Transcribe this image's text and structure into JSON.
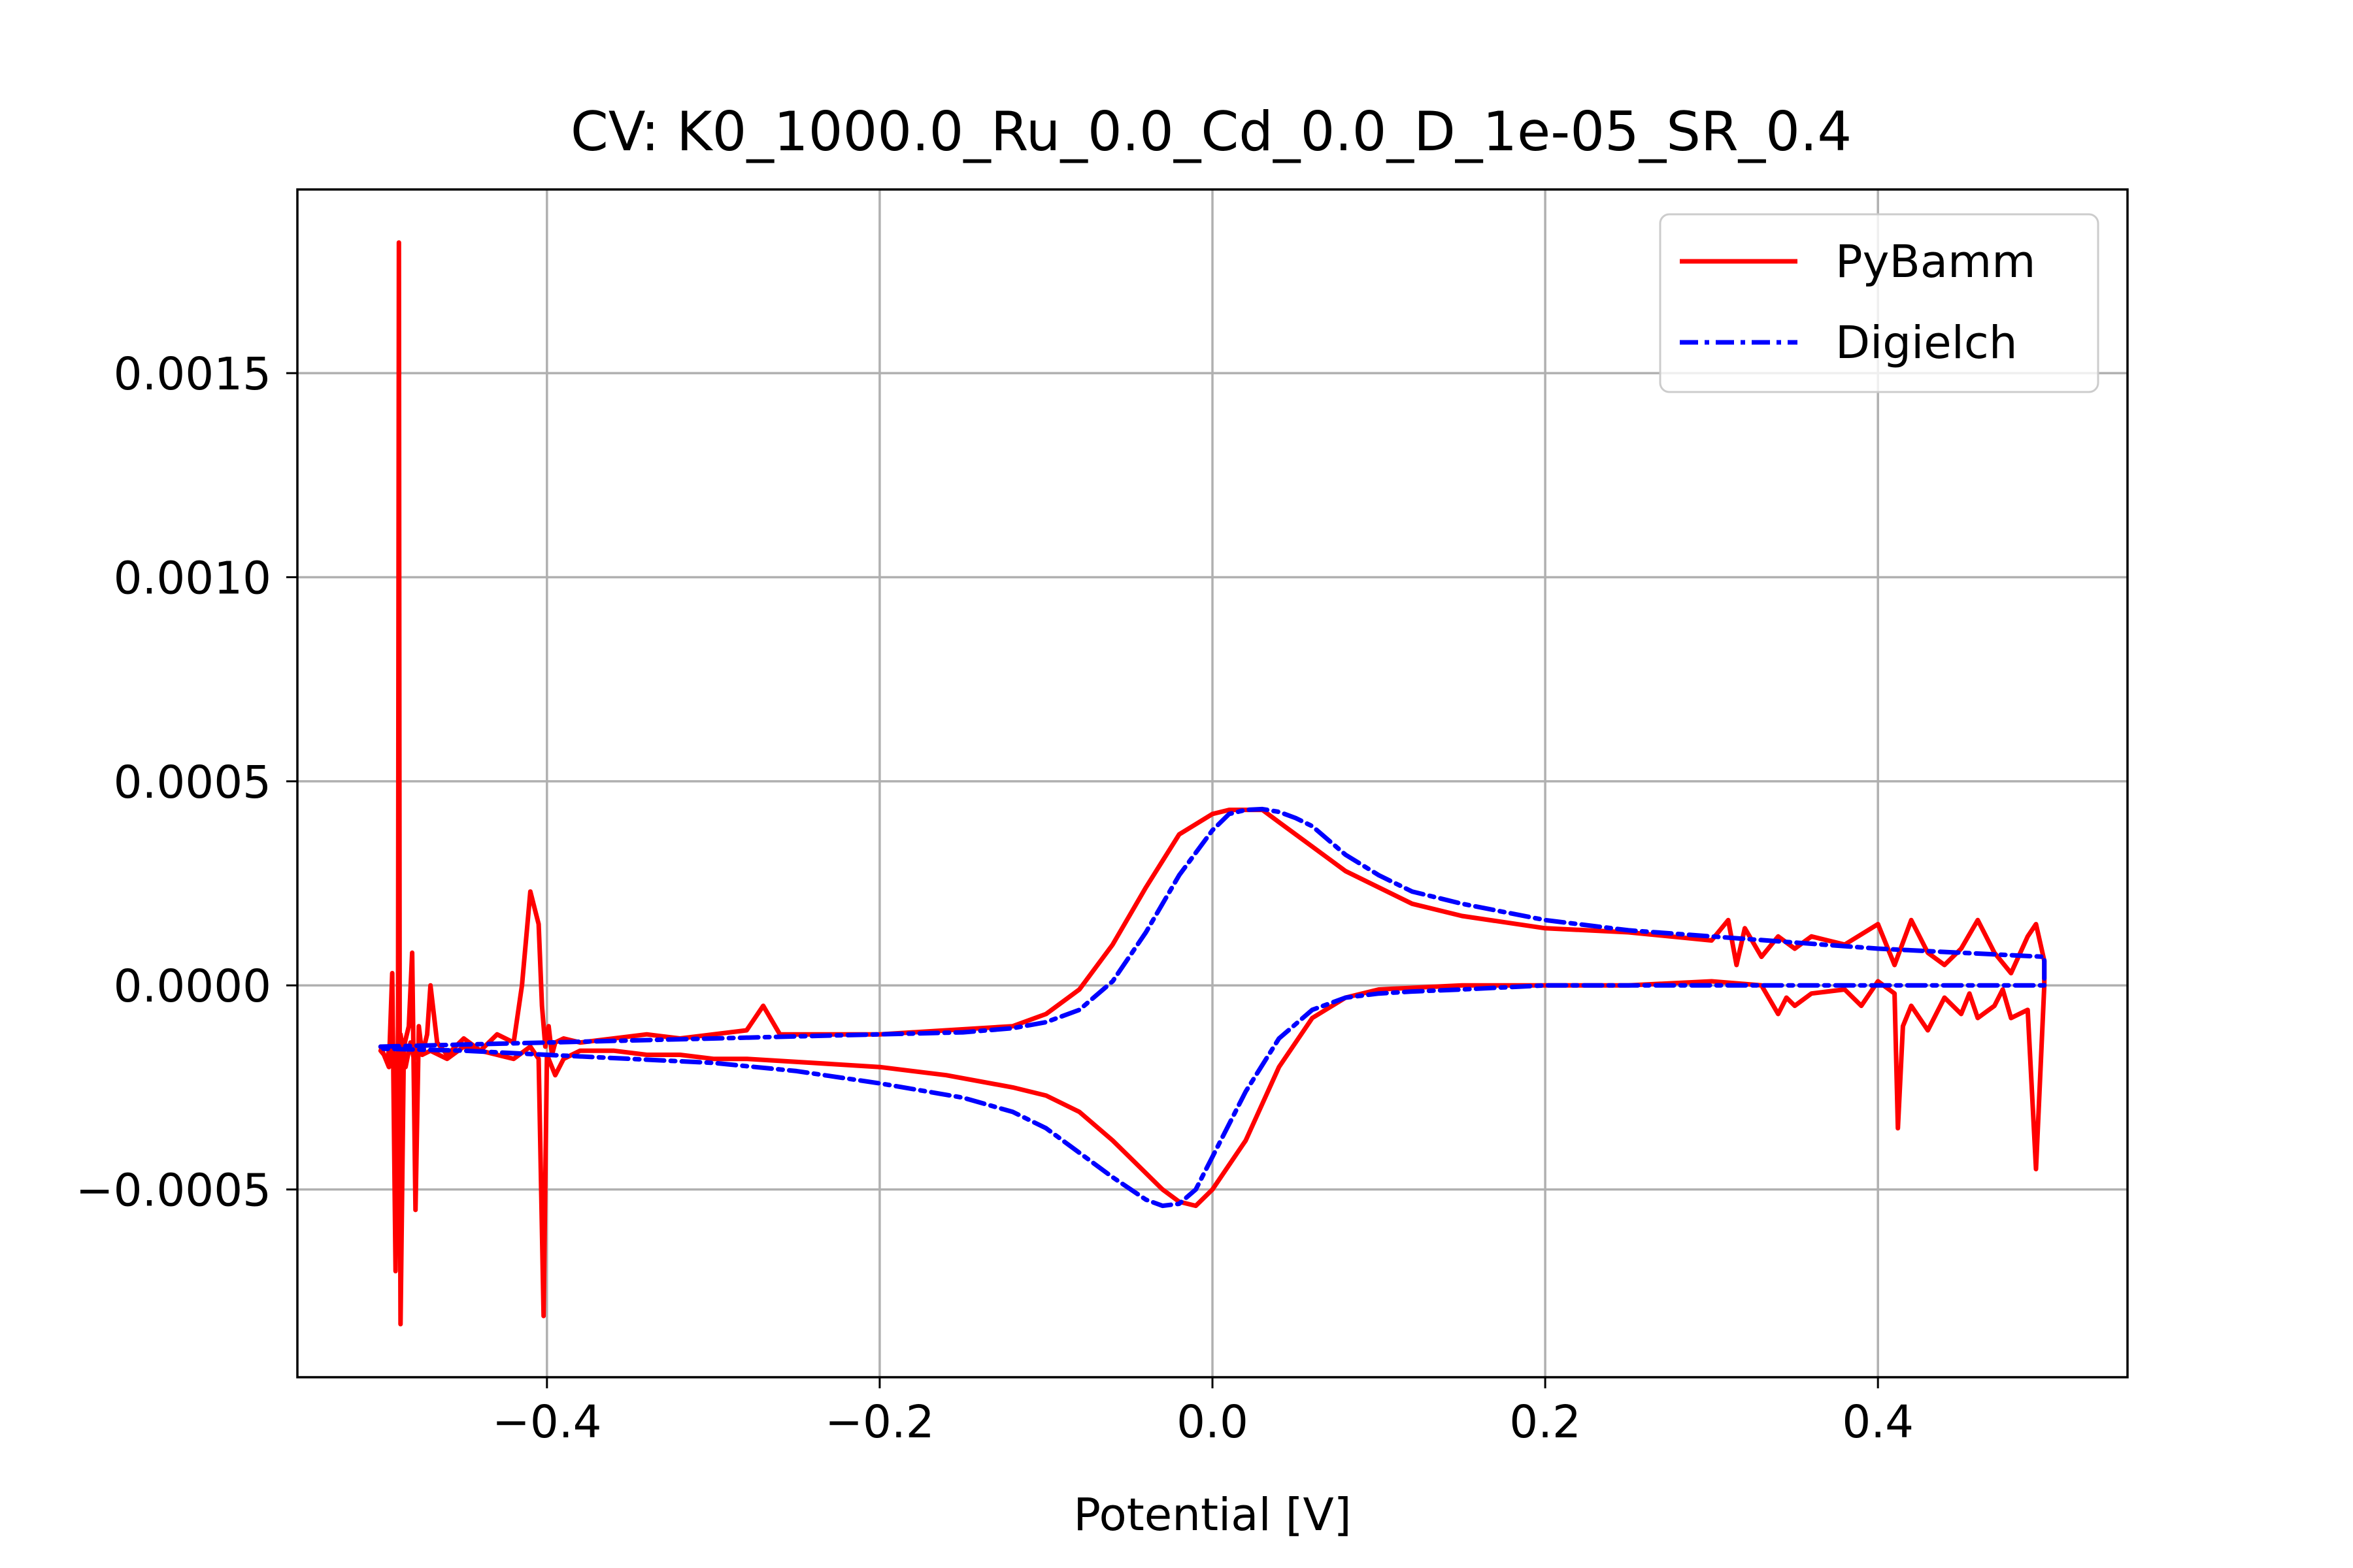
{
  "chart_data": {
    "type": "line",
    "title": "CV: K0_1000.0_Ru_0.0_Cd_0.0_D_1e-05_SR_0.4",
    "xlabel": "Potential [V]",
    "ylabel": "",
    "xlim": [
      -0.55,
      0.55
    ],
    "ylim": [
      -0.00096,
      0.00195
    ],
    "grid": true,
    "legend_position": "upper-right",
    "x_ticks": [
      -0.4,
      -0.2,
      0.0,
      0.2,
      0.4
    ],
    "x_tick_labels": [
      "−0.4",
      "−0.2",
      "0.0",
      "0.2",
      "0.4"
    ],
    "y_ticks": [
      -0.0005,
      0.0,
      0.0005,
      0.001,
      0.0015
    ],
    "y_tick_labels": [
      "−0.0005",
      "0.0000",
      "0.0005",
      "0.0010",
      "0.0015"
    ],
    "series": [
      {
        "name": "PyBamm",
        "color": "#ff0000",
        "style": "solid",
        "x": [
          -0.5,
          -0.495,
          -0.493,
          -0.491,
          -0.4895,
          -0.489,
          -0.4885,
          -0.488,
          -0.486,
          -0.483,
          -0.481,
          -0.479,
          -0.477,
          -0.475,
          -0.472,
          -0.47,
          -0.466,
          -0.46,
          -0.45,
          -0.44,
          -0.43,
          -0.42,
          -0.415,
          -0.41,
          -0.405,
          -0.403,
          -0.401,
          -0.399,
          -0.397,
          -0.395,
          -0.39,
          -0.38,
          -0.36,
          -0.34,
          -0.32,
          -0.3,
          -0.28,
          -0.27,
          -0.26,
          -0.24,
          -0.2,
          -0.16,
          -0.12,
          -0.1,
          -0.08,
          -0.06,
          -0.04,
          -0.02,
          0.0,
          0.01,
          0.02,
          0.03,
          0.04,
          0.06,
          0.08,
          0.1,
          0.12,
          0.15,
          0.2,
          0.25,
          0.3,
          0.31,
          0.315,
          0.32,
          0.33,
          0.34,
          0.35,
          0.36,
          0.38,
          0.4,
          0.41,
          0.42,
          0.43,
          0.44,
          0.45,
          0.46,
          0.47,
          0.48,
          0.49,
          0.495,
          0.5,
          0.5,
          0.495,
          0.49,
          0.48,
          0.475,
          0.47,
          0.46,
          0.455,
          0.45,
          0.44,
          0.43,
          0.42,
          0.415,
          0.412,
          0.41,
          0.4,
          0.39,
          0.38,
          0.36,
          0.35,
          0.345,
          0.34,
          0.33,
          0.3,
          0.25,
          0.2,
          0.15,
          0.1,
          0.08,
          0.06,
          0.04,
          0.02,
          0.0,
          -0.01,
          -0.02,
          -0.03,
          -0.04,
          -0.06,
          -0.08,
          -0.1,
          -0.12,
          -0.16,
          -0.2,
          -0.24,
          -0.28,
          -0.3,
          -0.32,
          -0.34,
          -0.36,
          -0.38,
          -0.39,
          -0.395,
          -0.4,
          -0.402,
          -0.405,
          -0.41,
          -0.42,
          -0.43,
          -0.44,
          -0.45,
          -0.46,
          -0.47,
          -0.475,
          -0.478,
          -0.48,
          -0.482,
          -0.485,
          -0.488,
          -0.49,
          -0.492,
          -0.494,
          -0.496,
          -0.5
        ],
        "y": [
          -0.00015,
          -0.0002,
          3e-05,
          -0.0007,
          -0.0001,
          0.00182,
          -0.0002,
          -0.00083,
          -0.00015,
          -0.0001,
          8e-05,
          -0.00055,
          -0.0001,
          -0.00017,
          -0.00012,
          0.0,
          -0.00014,
          -0.00017,
          -0.00013,
          -0.00016,
          -0.00012,
          -0.00014,
          0.0,
          0.00023,
          0.00015,
          -5e-05,
          -0.00015,
          -0.0001,
          -0.00017,
          -0.00014,
          -0.00013,
          -0.00014,
          -0.00013,
          -0.00012,
          -0.00013,
          -0.00012,
          -0.00011,
          -5e-05,
          -0.00012,
          -0.00012,
          -0.00012,
          -0.00011,
          -0.0001,
          -7e-05,
          -1e-05,
          0.0001,
          0.00024,
          0.00037,
          0.00042,
          0.00043,
          0.00043,
          0.00043,
          0.0004,
          0.00034,
          0.00028,
          0.00024,
          0.0002,
          0.00017,
          0.00014,
          0.00013,
          0.00011,
          0.00016,
          5e-05,
          0.00014,
          7e-05,
          0.00012,
          9e-05,
          0.00012,
          0.0001,
          0.00015,
          5e-05,
          0.00016,
          8e-05,
          5e-05,
          9e-05,
          0.00016,
          8e-05,
          3e-05,
          0.00012,
          0.00015,
          6e-05,
          0.0,
          -0.00045,
          -6e-05,
          -8e-05,
          -1e-05,
          -5e-05,
          -8e-05,
          -2e-05,
          -7e-05,
          -3e-05,
          -0.00011,
          -5e-05,
          -0.0001,
          -0.00035,
          -2e-05,
          1e-05,
          -5e-05,
          -1e-05,
          -2e-05,
          -5e-05,
          -3e-05,
          -7e-05,
          0.0,
          1e-05,
          0.0,
          0.0,
          0.0,
          -1e-05,
          -3e-05,
          -8e-05,
          -0.0002,
          -0.00038,
          -0.0005,
          -0.00054,
          -0.00053,
          -0.0005,
          -0.00046,
          -0.00038,
          -0.00031,
          -0.00027,
          -0.00025,
          -0.00022,
          -0.0002,
          -0.00019,
          -0.00018,
          -0.00018,
          -0.00017,
          -0.00017,
          -0.00016,
          -0.00016,
          -0.00018,
          -0.00022,
          -0.00017,
          -0.00081,
          -0.00018,
          -0.00015,
          -0.00018,
          -0.00017,
          -0.00016,
          -0.00015,
          -0.00018,
          -0.00016,
          -0.00017,
          -0.00015,
          -0.00018,
          -0.00014,
          -0.0002,
          -0.00012,
          -0.00022,
          -0.00017,
          -0.00014,
          -0.00018,
          -0.00016
        ]
      },
      {
        "name": "Digielch",
        "color": "#0000ff",
        "style": "dashdot",
        "x": [
          -0.5,
          -0.45,
          -0.4,
          -0.35,
          -0.3,
          -0.25,
          -0.2,
          -0.15,
          -0.12,
          -0.1,
          -0.08,
          -0.06,
          -0.04,
          -0.02,
          0.0,
          0.01,
          0.02,
          0.03,
          0.04,
          0.05,
          0.06,
          0.08,
          0.1,
          0.12,
          0.15,
          0.2,
          0.25,
          0.3,
          0.35,
          0.4,
          0.45,
          0.5,
          0.5,
          0.45,
          0.4,
          0.35,
          0.3,
          0.25,
          0.2,
          0.15,
          0.12,
          0.1,
          0.08,
          0.06,
          0.04,
          0.02,
          0.0,
          -0.01,
          -0.02,
          -0.03,
          -0.04,
          -0.06,
          -0.08,
          -0.1,
          -0.12,
          -0.15,
          -0.2,
          -0.25,
          -0.3,
          -0.35,
          -0.4,
          -0.45,
          -0.5
        ],
        "y": [
          -0.00015,
          -0.000145,
          -0.00014,
          -0.000135,
          -0.00013,
          -0.000125,
          -0.00012,
          -0.000115,
          -0.000105,
          -9e-05,
          -6e-05,
          1e-05,
          0.00013,
          0.00027,
          0.00038,
          0.00042,
          0.00043,
          0.000432,
          0.000425,
          0.00041,
          0.00039,
          0.00032,
          0.00027,
          0.00023,
          0.0002,
          0.00016,
          0.000135,
          0.00012,
          0.000105,
          9e-05,
          8e-05,
          7e-05,
          0.0,
          0.0,
          0.0,
          0.0,
          0.0,
          0.0,
          0.0,
          -1e-05,
          -1.5e-05,
          -2e-05,
          -3e-05,
          -6e-05,
          -0.00013,
          -0.00026,
          -0.00042,
          -0.0005,
          -0.000535,
          -0.00054,
          -0.000525,
          -0.00047,
          -0.00041,
          -0.00035,
          -0.00031,
          -0.000275,
          -0.00024,
          -0.00021,
          -0.00019,
          -0.00018,
          -0.00017,
          -0.00016,
          -0.000155
        ]
      }
    ]
  }
}
